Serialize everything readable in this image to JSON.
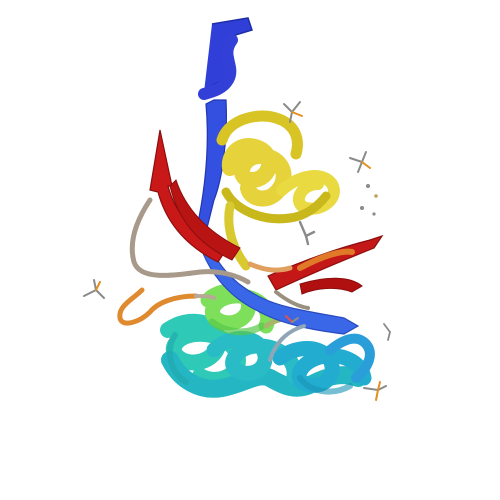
{
  "image": {
    "subject": "protein-ribbon-structure",
    "background_color": "#ffffff",
    "colors": {
      "n_terminus": "#2f3fd8",
      "strand_blue": "#3355e0",
      "helix_cyan": "#2fc9b8",
      "helix_teal": "#22b0c8",
      "helix_green": "#7fe05a",
      "helix_yellow": "#e8d838",
      "strand_yellow": "#d8c020",
      "strand_orange": "#e07a28",
      "strand_red": "#c41818",
      "loop_gray": "#a89a8a",
      "ligand_gray": "#8a8a8a",
      "ligand_orange": "#e09020"
    }
  }
}
